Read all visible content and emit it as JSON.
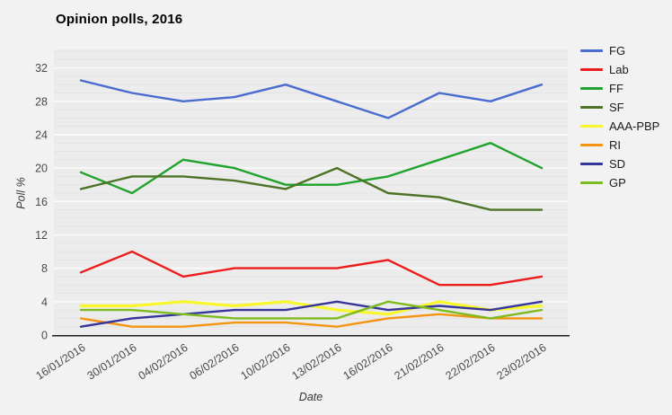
{
  "chart_data": {
    "type": "line",
    "title": "Opinion polls, 2016",
    "xlabel": "Date",
    "ylabel": "Poll %",
    "categories": [
      "16/01/2016",
      "30/01/2016",
      "04/02/2016",
      "06/02/2016",
      "10/02/2016",
      "13/02/2016",
      "16/02/2016",
      "21/02/2016",
      "22/02/2016",
      "23/02/2016"
    ],
    "series": [
      {
        "name": "FG",
        "color": "#4a6bd0",
        "width": 2.4,
        "values": [
          30.5,
          29,
          28,
          28.5,
          30,
          28,
          26,
          29,
          28,
          30
        ]
      },
      {
        "name": "Lab",
        "color": "#ed1c1c",
        "width": 2.4,
        "values": [
          7.5,
          10,
          7,
          8,
          8,
          8,
          9,
          6,
          6,
          7
        ]
      },
      {
        "name": "FF",
        "color": "#1fa32c",
        "width": 2.4,
        "values": [
          19.5,
          17,
          21,
          20,
          18,
          18,
          19,
          21,
          23,
          20
        ]
      },
      {
        "name": "SF",
        "color": "#4d7326",
        "width": 2.4,
        "values": [
          17.5,
          19,
          19,
          18.5,
          17.5,
          20,
          17,
          16.5,
          15,
          15
        ]
      },
      {
        "name": "AAA-PBP",
        "color": "#f7f72b",
        "width": 3.2,
        "values": [
          3.5,
          3.5,
          4,
          3.5,
          4,
          3,
          2.5,
          4,
          3,
          3.5
        ]
      },
      {
        "name": "RI",
        "color": "#f5940f",
        "width": 2.4,
        "values": [
          2,
          1,
          1,
          1.5,
          1.5,
          1,
          2,
          2.5,
          2,
          2
        ]
      },
      {
        "name": "SD",
        "color": "#35359b",
        "width": 2.4,
        "values": [
          1,
          2,
          2.5,
          3,
          3,
          4,
          3,
          3.5,
          3,
          4
        ]
      },
      {
        "name": "GP",
        "color": "#7ebb1f",
        "width": 2.4,
        "values": [
          3,
          3,
          2.5,
          2,
          2,
          2,
          4,
          3,
          2,
          3
        ]
      }
    ],
    "yticks": [
      0,
      4,
      8,
      12,
      16,
      20,
      24,
      28,
      32
    ],
    "ylim": [
      0,
      34
    ],
    "grid": "horizontal major (every 4) + minor (every 1)",
    "legend_position": "right",
    "x_tick_rotation_deg": -33
  }
}
